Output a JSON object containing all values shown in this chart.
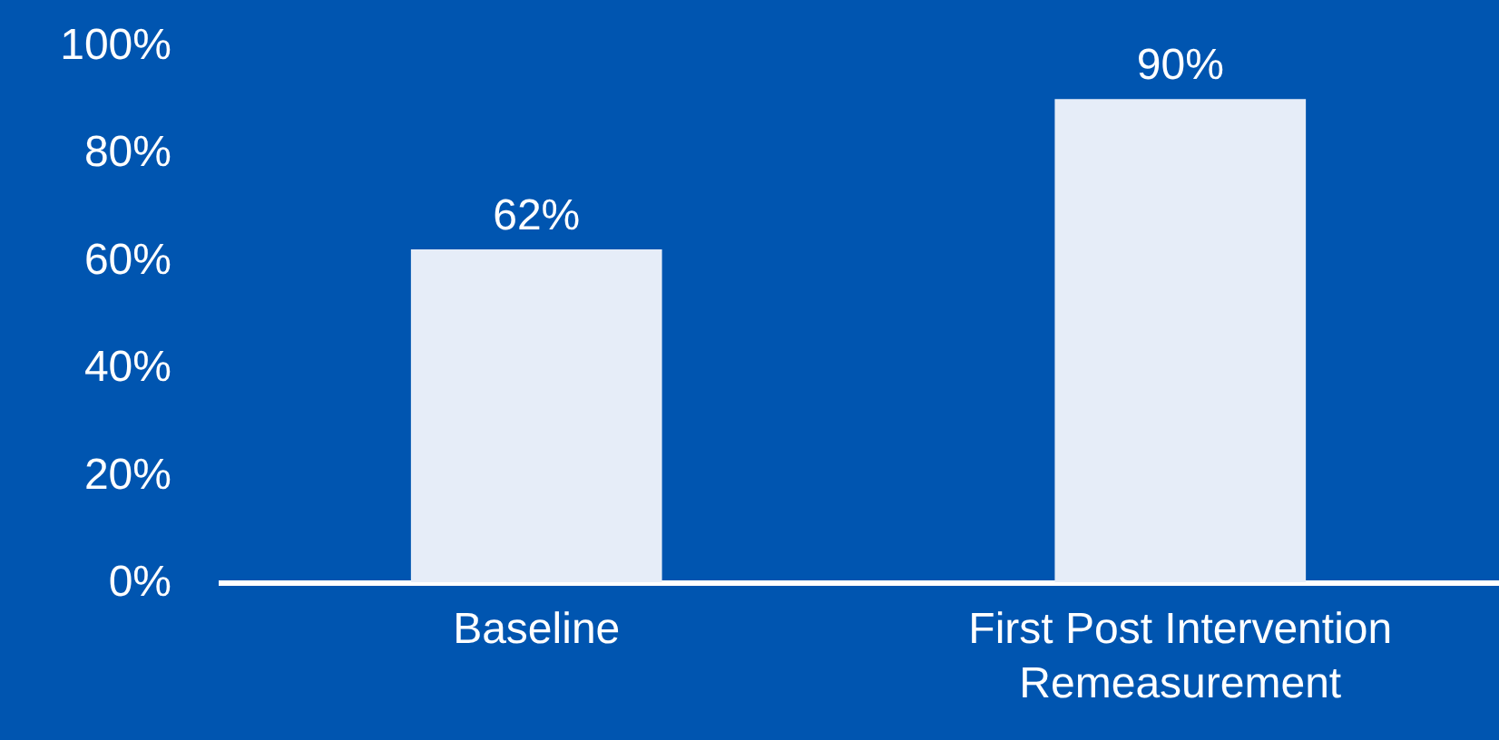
{
  "chart_data": {
    "type": "bar",
    "categories": [
      "Baseline",
      "First Post Intervention Remeasurement"
    ],
    "values": [
      62,
      90
    ],
    "color": "#e6edf8",
    "value_labels": [
      "62%",
      "90%"
    ],
    "ylim": [
      0,
      100
    ],
    "yticks": [
      {
        "value": 0,
        "label": "0%"
      },
      {
        "value": 20,
        "label": "20%"
      },
      {
        "value": 40,
        "label": "40%"
      },
      {
        "value": 60,
        "label": "60%"
      },
      {
        "value": 80,
        "label": "80%"
      },
      {
        "value": 100,
        "label": "100%"
      }
    ],
    "grid": false
  }
}
